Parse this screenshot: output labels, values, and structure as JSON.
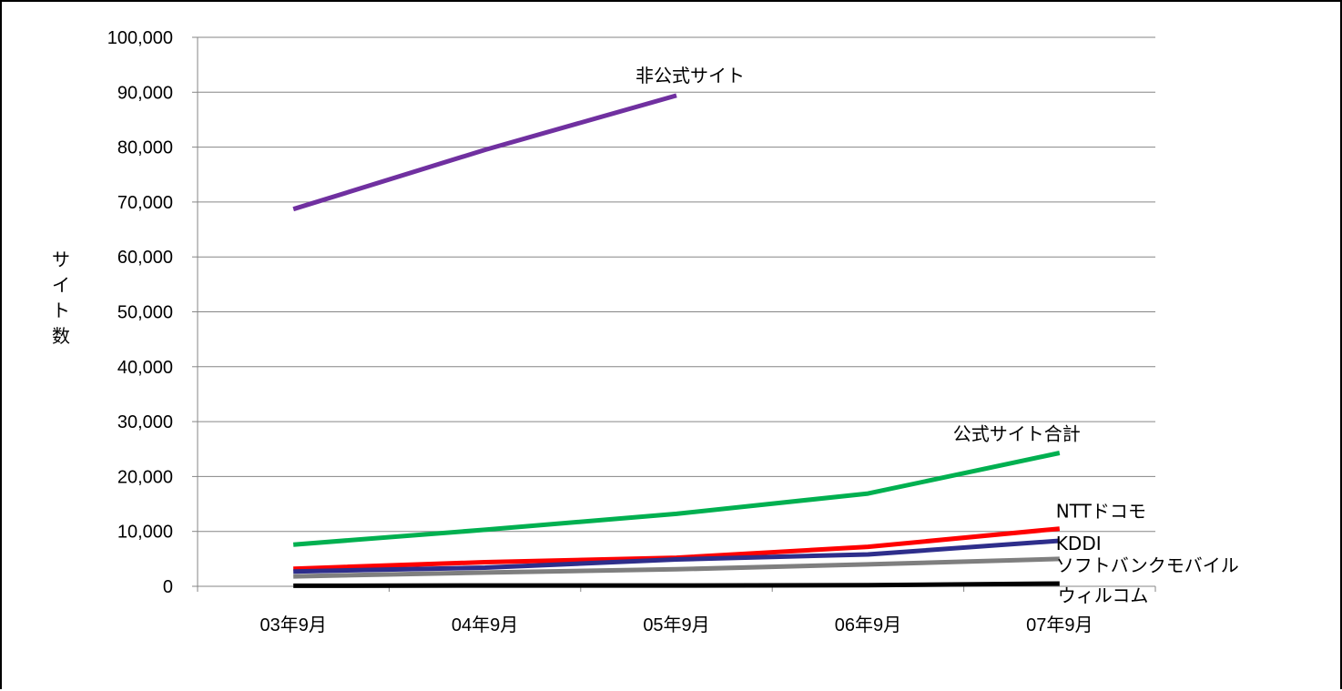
{
  "chart_data": {
    "type": "line",
    "title": "",
    "xlabel": "",
    "ylabel": "サイト数",
    "ylim": [
      0,
      100000
    ],
    "yticks": [
      0,
      10000,
      20000,
      30000,
      40000,
      50000,
      60000,
      70000,
      80000,
      90000,
      100000
    ],
    "ytick_labels": [
      "0",
      "10,000",
      "20,000",
      "30,000",
      "40,000",
      "50,000",
      "60,000",
      "70,000",
      "80,000",
      "90,000",
      "100,000"
    ],
    "categories": [
      "03年9月",
      "04年9月",
      "05年9月",
      "06年9月",
      "07年9月"
    ],
    "grid": "horizontal",
    "legend": "none",
    "series": [
      {
        "name": "非公式サイト",
        "color": "#7030A0",
        "values": [
          68700,
          79500,
          89400,
          null,
          null
        ]
      },
      {
        "name": "公式サイト合計",
        "color": "#00B050",
        "values": [
          7600,
          10300,
          13200,
          16900,
          24300
        ]
      },
      {
        "name": "NTTドコモ",
        "color": "#FF0000",
        "values": [
          3200,
          4400,
          5200,
          7200,
          10500
        ]
      },
      {
        "name": "KDDI",
        "color": "#2E2E8B",
        "values": [
          2700,
          3400,
          4900,
          5800,
          8300
        ]
      },
      {
        "name": "ソフトバンクモバイル",
        "color": "#7F7F7F",
        "values": [
          1800,
          2500,
          3100,
          4000,
          5000
        ]
      },
      {
        "name": "ウィルコム",
        "color": "#000000",
        "values": [
          100,
          150,
          150,
          200,
          500
        ]
      }
    ]
  }
}
